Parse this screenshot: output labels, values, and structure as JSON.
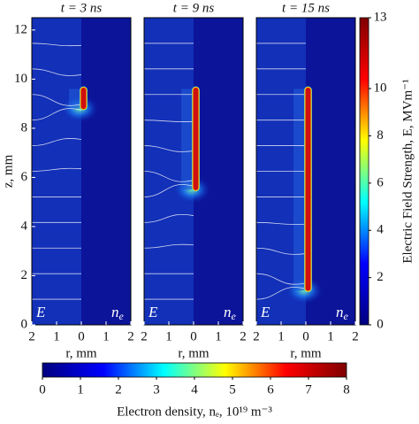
{
  "chart_data": [
    {
      "type": "field",
      "title": "t = 3 ns",
      "xlabel": "r, mm",
      "ylabel": "z, mm",
      "left_label": "E",
      "right_label": "n",
      "right_label_sub": "e",
      "xlim": [
        -2,
        2
      ],
      "xticks": [
        {
          "value": -2,
          "label": "2"
        },
        {
          "value": -1,
          "label": "1"
        },
        0,
        1,
        2
      ],
      "ylim": [
        0,
        12.5
      ],
      "yticks": [
        0,
        2,
        4,
        6,
        8,
        10,
        12
      ],
      "channel_z": [
        8.8,
        9.6
      ]
    },
    {
      "type": "field",
      "title": "t = 9 ns",
      "xlabel": "r, mm",
      "left_label": "E",
      "right_label": "n",
      "right_label_sub": "e",
      "xlim": [
        -2,
        2
      ],
      "xticks": [
        {
          "value": -2,
          "label": "2"
        },
        {
          "value": -1,
          "label": "1"
        },
        0,
        1,
        2
      ],
      "ylim": [
        0,
        12.5
      ],
      "channel_z": [
        5.5,
        9.6
      ]
    },
    {
      "type": "field",
      "title": "t = 15 ns",
      "xlabel": "r, mm",
      "left_label": "E",
      "right_label": "n",
      "right_label_sub": "e",
      "xlim": [
        -2,
        2
      ],
      "xticks": [
        {
          "value": -2,
          "label": "2"
        },
        {
          "value": -1,
          "label": "1"
        },
        0,
        1,
        2
      ],
      "ylim": [
        0,
        12.5
      ],
      "channel_z": [
        1.4,
        9.6
      ]
    },
    {
      "type": "colorbar",
      "orientation": "vertical",
      "label": "Electric Field Strength, E, MVm⁻¹",
      "lim": [
        0,
        13
      ],
      "ticks": [
        0,
        2,
        4,
        6,
        8,
        10,
        13
      ],
      "colors": [
        "#00007f",
        "#0000ff",
        "#00ffff",
        "#ffff00",
        "#ff0000",
        "#7f0000"
      ]
    },
    {
      "type": "colorbar",
      "orientation": "horizontal",
      "label": "Electron density, nₑ, 10¹⁹ m⁻³",
      "lim": [
        0,
        8
      ],
      "ticks": [
        0,
        1,
        2,
        3,
        4,
        5,
        6,
        7,
        8
      ],
      "colors": [
        "#00007f",
        "#0000ff",
        "#00ffff",
        "#ffff00",
        "#ff0000",
        "#7f0000"
      ]
    }
  ]
}
